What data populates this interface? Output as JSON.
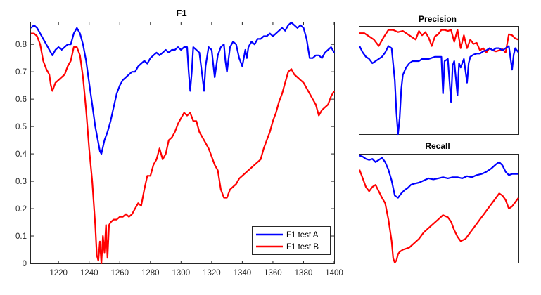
{
  "colors": {
    "series_a": "#0000ff",
    "series_b": "#ff0000",
    "axis": "#262626",
    "background": "#ffffff"
  },
  "chart_data": [
    {
      "id": "f1",
      "type": "line",
      "title": "F1",
      "xlabel": "",
      "ylabel": "",
      "xlim": [
        1202,
        1400
      ],
      "ylim": [
        0,
        0.88
      ],
      "xticks": [
        1220,
        1240,
        1260,
        1280,
        1300,
        1320,
        1340,
        1360,
        1380,
        1400
      ],
      "yticks": [
        0,
        0.1,
        0.2,
        0.3,
        0.4,
        0.5,
        0.6,
        0.7,
        0.8
      ],
      "grid": false,
      "legend_location": "bottom-right",
      "series": [
        {
          "name": "F1 test A",
          "color": "#0000ff",
          "x": [
            1202,
            1204,
            1206,
            1208,
            1210,
            1212,
            1214,
            1216,
            1218,
            1220,
            1222,
            1224,
            1226,
            1228,
            1230,
            1232,
            1234,
            1236,
            1238,
            1240,
            1242,
            1244,
            1246,
            1247,
            1248,
            1250,
            1252,
            1254,
            1256,
            1258,
            1260,
            1262,
            1264,
            1266,
            1268,
            1270,
            1272,
            1274,
            1276,
            1278,
            1280,
            1282,
            1284,
            1286,
            1288,
            1290,
            1292,
            1294,
            1296,
            1298,
            1300,
            1302,
            1304,
            1305,
            1306,
            1307,
            1308,
            1310,
            1312,
            1314,
            1315,
            1316,
            1318,
            1320,
            1321,
            1322,
            1324,
            1326,
            1328,
            1329,
            1330,
            1332,
            1334,
            1336,
            1338,
            1340,
            1342,
            1343,
            1344,
            1346,
            1348,
            1350,
            1352,
            1354,
            1356,
            1358,
            1360,
            1362,
            1364,
            1366,
            1368,
            1370,
            1372,
            1374,
            1376,
            1378,
            1380,
            1382,
            1384,
            1386,
            1388,
            1390,
            1392,
            1394,
            1396,
            1398,
            1400
          ],
          "values": [
            0.86,
            0.87,
            0.86,
            0.84,
            0.82,
            0.8,
            0.78,
            0.76,
            0.78,
            0.79,
            0.78,
            0.79,
            0.8,
            0.8,
            0.84,
            0.86,
            0.84,
            0.8,
            0.74,
            0.66,
            0.58,
            0.5,
            0.44,
            0.41,
            0.4,
            0.45,
            0.48,
            0.52,
            0.57,
            0.62,
            0.65,
            0.67,
            0.68,
            0.69,
            0.7,
            0.7,
            0.72,
            0.73,
            0.74,
            0.73,
            0.75,
            0.76,
            0.77,
            0.76,
            0.77,
            0.78,
            0.77,
            0.78,
            0.78,
            0.79,
            0.78,
            0.79,
            0.79,
            0.7,
            0.63,
            0.7,
            0.79,
            0.78,
            0.77,
            0.68,
            0.63,
            0.72,
            0.79,
            0.78,
            0.73,
            0.68,
            0.76,
            0.79,
            0.8,
            0.74,
            0.7,
            0.79,
            0.81,
            0.8,
            0.75,
            0.72,
            0.78,
            0.75,
            0.79,
            0.81,
            0.8,
            0.82,
            0.82,
            0.83,
            0.83,
            0.84,
            0.83,
            0.84,
            0.85,
            0.86,
            0.85,
            0.87,
            0.88,
            0.87,
            0.86,
            0.87,
            0.86,
            0.82,
            0.75,
            0.75,
            0.76,
            0.76,
            0.75,
            0.77,
            0.78,
            0.79,
            0.77
          ]
        },
        {
          "name": "F1 test B",
          "color": "#ff0000",
          "x": [
            1202,
            1204,
            1206,
            1208,
            1210,
            1212,
            1214,
            1215,
            1216,
            1218,
            1220,
            1222,
            1224,
            1226,
            1228,
            1230,
            1232,
            1234,
            1236,
            1238,
            1240,
            1242,
            1244,
            1245,
            1246,
            1247,
            1248,
            1249,
            1250,
            1251,
            1252,
            1253,
            1254,
            1256,
            1258,
            1260,
            1262,
            1264,
            1266,
            1268,
            1270,
            1272,
            1274,
            1276,
            1278,
            1280,
            1282,
            1284,
            1286,
            1288,
            1290,
            1292,
            1294,
            1296,
            1298,
            1300,
            1302,
            1304,
            1306,
            1308,
            1310,
            1312,
            1314,
            1316,
            1318,
            1320,
            1322,
            1324,
            1326,
            1328,
            1330,
            1332,
            1334,
            1336,
            1338,
            1340,
            1342,
            1344,
            1346,
            1348,
            1350,
            1352,
            1354,
            1356,
            1358,
            1360,
            1362,
            1364,
            1366,
            1368,
            1370,
            1372,
            1374,
            1376,
            1378,
            1380,
            1382,
            1384,
            1386,
            1388,
            1390,
            1392,
            1394,
            1396,
            1398,
            1400
          ],
          "values": [
            0.84,
            0.84,
            0.83,
            0.8,
            0.74,
            0.71,
            0.69,
            0.65,
            0.63,
            0.66,
            0.67,
            0.68,
            0.69,
            0.72,
            0.74,
            0.79,
            0.79,
            0.76,
            0.68,
            0.56,
            0.42,
            0.3,
            0.14,
            0.03,
            0.01,
            0.08,
            0.0,
            0.1,
            0.04,
            0.14,
            0.02,
            0.14,
            0.15,
            0.16,
            0.16,
            0.17,
            0.17,
            0.18,
            0.17,
            0.18,
            0.2,
            0.22,
            0.21,
            0.27,
            0.32,
            0.32,
            0.36,
            0.38,
            0.42,
            0.38,
            0.4,
            0.45,
            0.46,
            0.48,
            0.51,
            0.53,
            0.55,
            0.54,
            0.55,
            0.52,
            0.52,
            0.48,
            0.46,
            0.44,
            0.42,
            0.39,
            0.36,
            0.34,
            0.27,
            0.24,
            0.24,
            0.27,
            0.28,
            0.29,
            0.31,
            0.32,
            0.33,
            0.34,
            0.35,
            0.36,
            0.37,
            0.38,
            0.42,
            0.45,
            0.48,
            0.52,
            0.55,
            0.59,
            0.62,
            0.66,
            0.7,
            0.71,
            0.69,
            0.68,
            0.67,
            0.66,
            0.64,
            0.62,
            0.6,
            0.58,
            0.54,
            0.56,
            0.57,
            0.58,
            0.61,
            0.63
          ]
        }
      ]
    },
    {
      "id": "precision",
      "type": "line",
      "title": "Precision",
      "xlim": [
        1202,
        1400
      ],
      "ylim": [
        0,
        1
      ],
      "grid": false,
      "series": [
        {
          "color": "#ff0000",
          "x": [
            1202,
            1208,
            1214,
            1220,
            1226,
            1232,
            1238,
            1244,
            1250,
            1256,
            1262,
            1268,
            1272,
            1276,
            1280,
            1284,
            1288,
            1292,
            1296,
            1300,
            1304,
            1308,
            1312,
            1316,
            1320,
            1324,
            1328,
            1332,
            1336,
            1340,
            1344,
            1348,
            1352,
            1356,
            1360,
            1364,
            1368,
            1372,
            1376,
            1380,
            1384,
            1388,
            1392,
            1396,
            1400
          ],
          "values": [
            0.94,
            0.94,
            0.91,
            0.88,
            0.82,
            0.9,
            0.97,
            0.97,
            0.95,
            0.96,
            0.93,
            0.9,
            0.88,
            0.96,
            0.92,
            0.95,
            0.9,
            0.82,
            0.91,
            0.93,
            0.97,
            0.97,
            0.96,
            0.97,
            0.86,
            0.97,
            0.8,
            0.92,
            0.8,
            0.88,
            0.84,
            0.85,
            0.78,
            0.8,
            0.76,
            0.8,
            0.78,
            0.77,
            0.78,
            0.79,
            0.76,
            0.93,
            0.92,
            0.89,
            0.88
          ]
        },
        {
          "color": "#0000ff",
          "x": [
            1202,
            1206,
            1210,
            1214,
            1218,
            1222,
            1226,
            1230,
            1234,
            1238,
            1242,
            1246,
            1248,
            1250,
            1252,
            1254,
            1256,
            1260,
            1264,
            1268,
            1272,
            1276,
            1280,
            1284,
            1288,
            1292,
            1296,
            1300,
            1304,
            1306,
            1308,
            1312,
            1316,
            1318,
            1320,
            1324,
            1326,
            1328,
            1332,
            1336,
            1338,
            1340,
            1344,
            1348,
            1352,
            1356,
            1360,
            1364,
            1368,
            1372,
            1376,
            1380,
            1384,
            1388,
            1392,
            1394,
            1396,
            1400
          ],
          "values": [
            0.82,
            0.76,
            0.72,
            0.7,
            0.66,
            0.68,
            0.7,
            0.72,
            0.76,
            0.82,
            0.8,
            0.5,
            0.2,
            0.0,
            0.15,
            0.42,
            0.55,
            0.62,
            0.66,
            0.68,
            0.68,
            0.68,
            0.7,
            0.7,
            0.7,
            0.71,
            0.72,
            0.72,
            0.72,
            0.38,
            0.68,
            0.7,
            0.3,
            0.64,
            0.68,
            0.36,
            0.66,
            0.62,
            0.7,
            0.48,
            0.66,
            0.72,
            0.74,
            0.75,
            0.75,
            0.77,
            0.78,
            0.8,
            0.78,
            0.8,
            0.8,
            0.78,
            0.8,
            0.82,
            0.6,
            0.74,
            0.8,
            0.76
          ]
        }
      ]
    },
    {
      "id": "recall",
      "type": "line",
      "title": "Recall",
      "xlim": [
        1202,
        1400
      ],
      "ylim": [
        0,
        1
      ],
      "grid": false,
      "series": [
        {
          "color": "#0000ff",
          "x": [
            1202,
            1206,
            1210,
            1214,
            1218,
            1222,
            1226,
            1230,
            1234,
            1238,
            1242,
            1246,
            1250,
            1254,
            1258,
            1262,
            1266,
            1270,
            1276,
            1282,
            1288,
            1294,
            1300,
            1306,
            1312,
            1318,
            1324,
            1330,
            1336,
            1342,
            1348,
            1354,
            1360,
            1366,
            1372,
            1376,
            1380,
            1384,
            1388,
            1392,
            1396,
            1400
          ],
          "values": [
            0.99,
            0.98,
            0.96,
            0.95,
            0.96,
            0.93,
            0.95,
            0.97,
            0.93,
            0.86,
            0.76,
            0.62,
            0.6,
            0.64,
            0.67,
            0.69,
            0.72,
            0.73,
            0.74,
            0.76,
            0.78,
            0.77,
            0.78,
            0.79,
            0.78,
            0.79,
            0.79,
            0.78,
            0.8,
            0.79,
            0.81,
            0.82,
            0.84,
            0.87,
            0.91,
            0.93,
            0.9,
            0.84,
            0.81,
            0.82,
            0.82,
            0.82
          ]
        },
        {
          "color": "#ff0000",
          "x": [
            1202,
            1206,
            1210,
            1214,
            1218,
            1222,
            1226,
            1230,
            1234,
            1238,
            1242,
            1244,
            1246,
            1248,
            1250,
            1252,
            1256,
            1260,
            1264,
            1270,
            1276,
            1282,
            1288,
            1294,
            1300,
            1306,
            1312,
            1316,
            1320,
            1324,
            1328,
            1334,
            1340,
            1346,
            1352,
            1358,
            1364,
            1370,
            1376,
            1380,
            1384,
            1388,
            1392,
            1396,
            1400
          ],
          "values": [
            0.86,
            0.78,
            0.7,
            0.66,
            0.7,
            0.72,
            0.66,
            0.6,
            0.55,
            0.4,
            0.2,
            0.04,
            0.0,
            0.02,
            0.08,
            0.1,
            0.12,
            0.13,
            0.14,
            0.18,
            0.22,
            0.28,
            0.32,
            0.36,
            0.4,
            0.44,
            0.42,
            0.38,
            0.3,
            0.24,
            0.2,
            0.22,
            0.28,
            0.34,
            0.4,
            0.46,
            0.52,
            0.58,
            0.64,
            0.62,
            0.58,
            0.5,
            0.52,
            0.56,
            0.6
          ]
        }
      ]
    }
  ]
}
